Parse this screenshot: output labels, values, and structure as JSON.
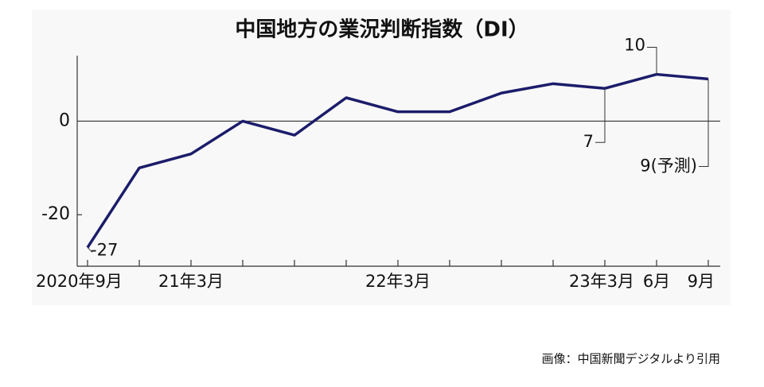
{
  "chart_data": {
    "type": "line",
    "title": "中国地方の業況判断指数（DI）",
    "categories": [
      "2020年9月",
      null,
      "21年3月",
      null,
      null,
      null,
      "22年3月",
      null,
      null,
      null,
      "23年3月",
      "6月",
      "9月"
    ],
    "series": [
      {
        "color": "#1c1c6b",
        "values": [
          -27,
          -10,
          -7,
          0,
          -3,
          5,
          2,
          2,
          6,
          8,
          7,
          10,
          9
        ],
        "value_labels": [
          "-27",
          null,
          null,
          null,
          null,
          null,
          null,
          null,
          null,
          null,
          "7",
          "10",
          "9(予測)"
        ]
      }
    ],
    "ylim": [
      -31,
      14
    ],
    "yticks": [
      -20,
      0
    ]
  },
  "source": "画像：中国新聞デジタルより引用"
}
